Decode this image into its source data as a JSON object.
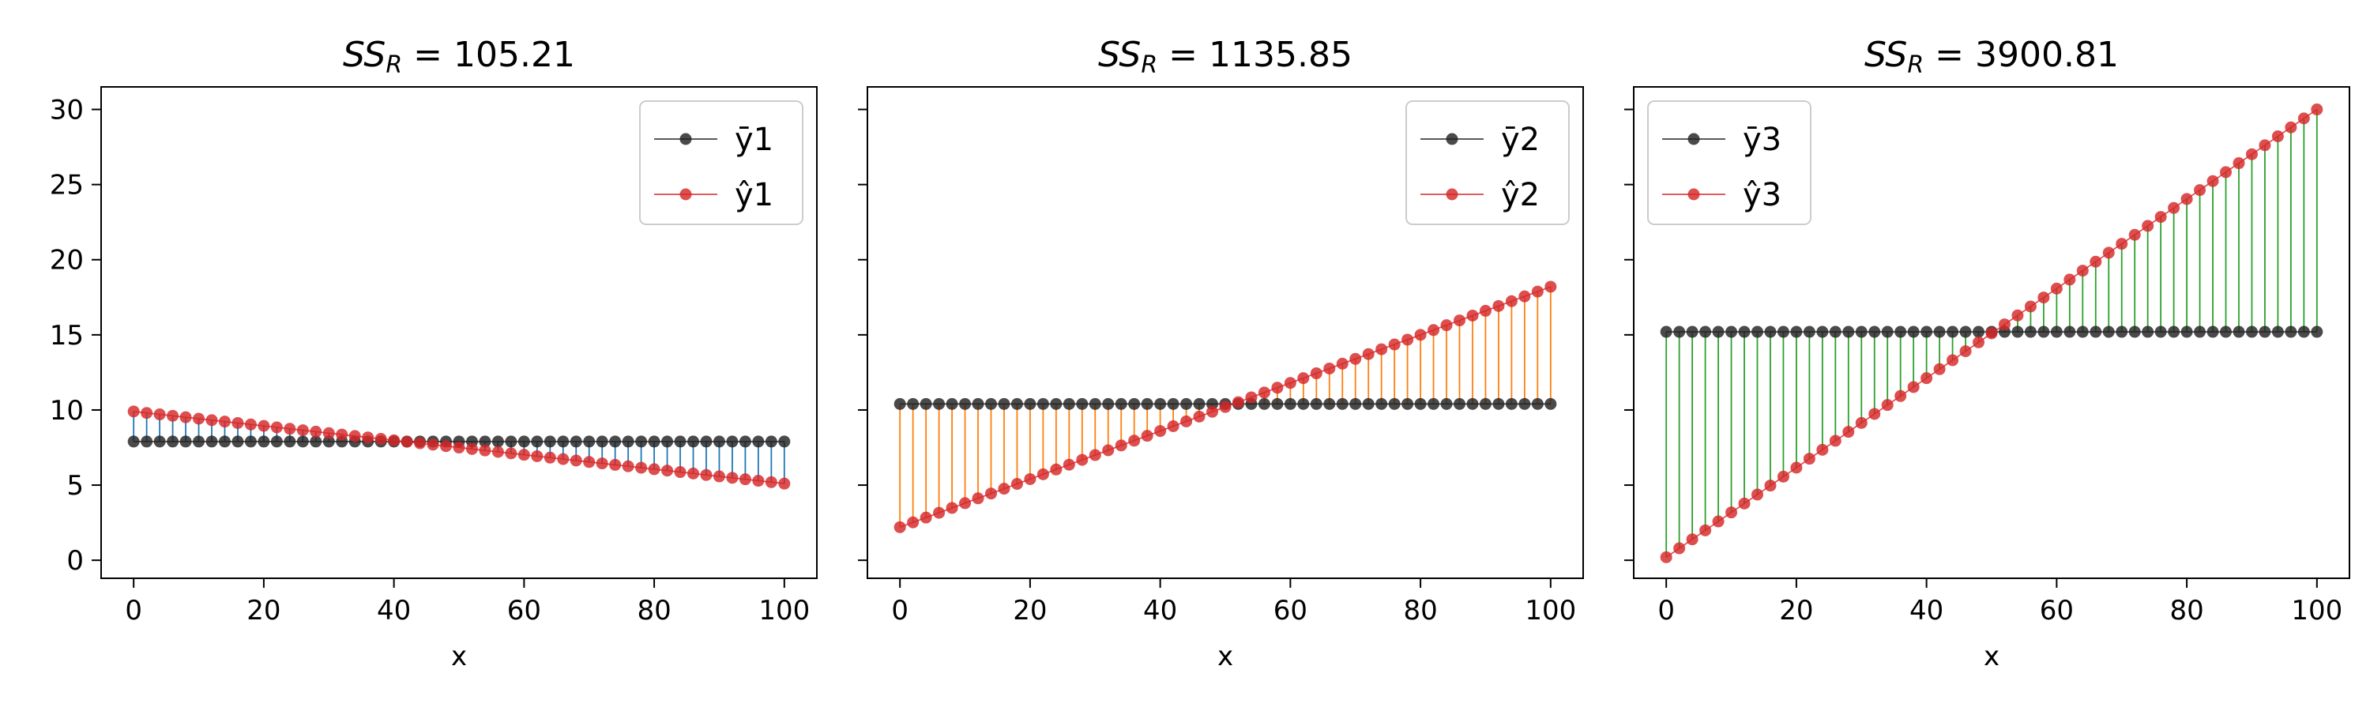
{
  "chart_data": [
    {
      "type": "scatter",
      "title_prefix": "SS",
      "title_subscript": "R",
      "title_value": "105.21",
      "xlabel": "x",
      "ylabel": "",
      "xlim": [
        -5,
        105
      ],
      "ylim": [
        -1.2,
        31.5
      ],
      "xticks": [
        0,
        20,
        40,
        60,
        80,
        100
      ],
      "yticks": [
        0,
        5,
        10,
        15,
        20,
        25,
        30
      ],
      "show_yticklabels": true,
      "legend_position": "upper right",
      "residual_color": "#1f77b4",
      "x_start": 0,
      "x_end": 100,
      "n_points": 51,
      "series": [
        {
          "name": "ȳ1",
          "color": "#222222",
          "y_start": 7.9,
          "y_end": 7.9
        },
        {
          "name": "ŷ1",
          "color": "#d62728",
          "y_start": 9.9,
          "y_end": 5.1
        }
      ]
    },
    {
      "type": "scatter",
      "title_prefix": "SS",
      "title_subscript": "R",
      "title_value": "1135.85",
      "xlabel": "x",
      "ylabel": "",
      "xlim": [
        -5,
        105
      ],
      "ylim": [
        -1.2,
        31.5
      ],
      "xticks": [
        0,
        20,
        40,
        60,
        80,
        100
      ],
      "yticks": [
        0,
        5,
        10,
        15,
        20,
        25,
        30
      ],
      "show_yticklabels": false,
      "legend_position": "upper right",
      "residual_color": "#ff7f0e",
      "x_start": 0,
      "x_end": 100,
      "n_points": 51,
      "series": [
        {
          "name": "ȳ2",
          "color": "#222222",
          "y_start": 10.4,
          "y_end": 10.4
        },
        {
          "name": "ŷ2",
          "color": "#d62728",
          "y_start": 2.2,
          "y_end": 18.2
        }
      ]
    },
    {
      "type": "scatter",
      "title_prefix": "SS",
      "title_subscript": "R",
      "title_value": "3900.81",
      "xlabel": "x",
      "ylabel": "",
      "xlim": [
        -5,
        105
      ],
      "ylim": [
        -1.2,
        31.5
      ],
      "xticks": [
        0,
        20,
        40,
        60,
        80,
        100
      ],
      "yticks": [
        0,
        5,
        10,
        15,
        20,
        25,
        30
      ],
      "show_yticklabels": false,
      "legend_position": "upper left",
      "residual_color": "#2ca02c",
      "x_start": 0,
      "x_end": 100,
      "n_points": 51,
      "series": [
        {
          "name": "ȳ3",
          "color": "#222222",
          "y_start": 15.2,
          "y_end": 15.2
        },
        {
          "name": "ŷ3",
          "color": "#d62728",
          "y_start": 0.2,
          "y_end": 30.0
        }
      ]
    }
  ]
}
